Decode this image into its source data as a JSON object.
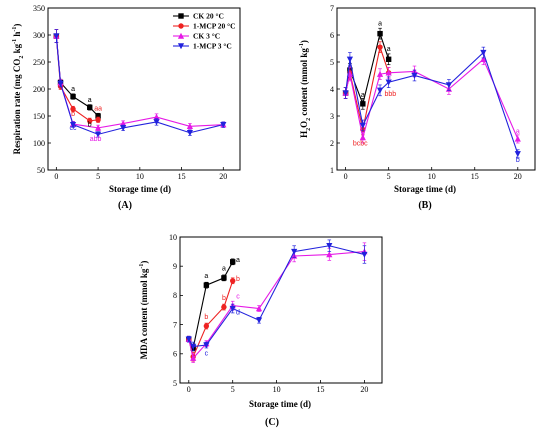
{
  "chart_data": [
    {
      "type": "line",
      "panel_label": "(A)",
      "xlabel": "Storage time (d)",
      "ylabel": "Respiration rate (mg CO2 kg-1 h-1)",
      "xlim": [
        -1,
        22
      ],
      "ylim": [
        50,
        350
      ],
      "xticks": [
        0,
        5,
        10,
        15,
        20
      ],
      "yticks": [
        50,
        100,
        150,
        200,
        250,
        300,
        350
      ],
      "legend_position": "top-right",
      "series": [
        {
          "name": "CK 20 °C",
          "color": "#000000",
          "marker": "square",
          "x": [
            0,
            0.5,
            2,
            4,
            5
          ],
          "y": [
            298,
            212,
            186,
            166,
            150
          ],
          "err": [
            12,
            6,
            5,
            5,
            5
          ]
        },
        {
          "name": "1-MCP 20 °C",
          "color": "#ee2222",
          "marker": "circle",
          "x": [
            0,
            0.5,
            2,
            4,
            5
          ],
          "y": [
            298,
            205,
            163,
            141,
            143
          ],
          "err": [
            12,
            6,
            5,
            5,
            5
          ]
        },
        {
          "name": "CK 3 °C",
          "color": "#e619e6",
          "marker": "triangle-up",
          "x": [
            0,
            0.5,
            2,
            5,
            8,
            12,
            16,
            20
          ],
          "y": [
            298,
            212,
            135,
            128,
            136,
            148,
            131,
            134
          ],
          "err": [
            12,
            6,
            5,
            5,
            5,
            6,
            5,
            5
          ]
        },
        {
          "name": "1-MCP 3 °C",
          "color": "#2222dd",
          "marker": "triangle-down",
          "x": [
            0,
            0.5,
            2,
            5,
            8,
            12,
            16,
            20
          ],
          "y": [
            298,
            210,
            134,
            116,
            128,
            139,
            119,
            134
          ],
          "err": [
            12,
            6,
            5,
            5,
            5,
            6,
            5,
            5
          ]
        }
      ],
      "annotations": [
        {
          "text": "a",
          "x": 2,
          "y": 196,
          "color": "#000000"
        },
        {
          "text": "b",
          "x": 2,
          "y": 150,
          "color": "#ee2222"
        },
        {
          "text": "cc",
          "x": 2,
          "y": 124,
          "color": "#2222dd"
        },
        {
          "text": "a",
          "x": 4,
          "y": 176,
          "color": "#000000"
        },
        {
          "text": "b",
          "x": 4,
          "y": 131,
          "color": "#000000"
        },
        {
          "text": "aa",
          "x": 5,
          "y": 160,
          "color": "#ee2222"
        },
        {
          "text": "abb",
          "x": 4.7,
          "y": 104,
          "color": "#e619e6"
        }
      ]
    },
    {
      "type": "line",
      "panel_label": "(B)",
      "xlabel": "Storage time (d)",
      "ylabel": "H2O2 content (mmol kg-1)",
      "xlim": [
        -1,
        22
      ],
      "ylim": [
        1,
        7
      ],
      "xticks": [
        0,
        5,
        10,
        15,
        20
      ],
      "yticks": [
        1,
        2,
        3,
        4,
        5,
        6,
        7
      ],
      "series": [
        {
          "name": "CK 20 °C",
          "color": "#000000",
          "marker": "square",
          "x": [
            0,
            0.5,
            2,
            4,
            5
          ],
          "y": [
            3.85,
            4.7,
            3.45,
            6.05,
            5.1
          ],
          "err": [
            0.2,
            0.25,
            0.2,
            0.2,
            0.2
          ]
        },
        {
          "name": "1-MCP 20 °C",
          "color": "#ee2222",
          "marker": "circle",
          "x": [
            0,
            0.5,
            2,
            4,
            5
          ],
          "y": [
            3.85,
            4.6,
            2.5,
            5.55,
            4.6
          ],
          "err": [
            0.2,
            0.25,
            0.2,
            0.2,
            0.2
          ]
        },
        {
          "name": "CK 3 °C",
          "color": "#e619e6",
          "marker": "triangle-up",
          "x": [
            0,
            0.5,
            2,
            4,
            5,
            8,
            12,
            16,
            20
          ],
          "y": [
            3.85,
            4.55,
            2.2,
            4.55,
            4.6,
            4.65,
            4.0,
            5.1,
            2.15
          ],
          "err": [
            0.2,
            0.25,
            0.2,
            0.2,
            0.2,
            0.2,
            0.2,
            0.2,
            0.15
          ]
        },
        {
          "name": "1-MCP 3 °C",
          "color": "#2222dd",
          "marker": "triangle-down",
          "x": [
            0,
            0.5,
            2,
            4,
            5,
            8,
            12,
            16,
            20
          ],
          "y": [
            3.85,
            5.1,
            2.65,
            3.95,
            4.25,
            4.5,
            4.15,
            5.35,
            1.6
          ],
          "err": [
            0.2,
            0.25,
            0.2,
            0.2,
            0.2,
            0.2,
            0.2,
            0.2,
            0.15
          ]
        }
      ],
      "annotations": [
        {
          "text": "a",
          "x": 2,
          "y": 3.7,
          "color": "#000000"
        },
        {
          "text": "bcbc",
          "x": 1.7,
          "y": 1.9,
          "color": "#ee2222"
        },
        {
          "text": "a",
          "x": 4,
          "y": 6.35,
          "color": "#000000"
        },
        {
          "text": "a",
          "x": 5,
          "y": 5.4,
          "color": "#000000"
        },
        {
          "text": "bbb",
          "x": 5.2,
          "y": 3.75,
          "color": "#ee2222"
        },
        {
          "text": "a",
          "x": 20,
          "y": 2.35,
          "color": "#e619e6"
        },
        {
          "text": "b",
          "x": 20,
          "y": 1.3,
          "color": "#2222dd"
        }
      ]
    },
    {
      "type": "line",
      "panel_label": "(C)",
      "xlabel": "Storage time (d)",
      "ylabel": "MDA content (mmol kg-1)",
      "xlim": [
        -1,
        22
      ],
      "ylim": [
        5,
        10
      ],
      "xticks": [
        0,
        5,
        10,
        15,
        20
      ],
      "yticks": [
        5,
        6,
        7,
        8,
        9,
        10
      ],
      "series": [
        {
          "name": "CK 20 °C",
          "color": "#000000",
          "marker": "square",
          "x": [
            0,
            0.5,
            2,
            4,
            5
          ],
          "y": [
            6.5,
            6.2,
            8.35,
            8.6,
            9.15
          ],
          "err": [
            0.1,
            0.1,
            0.1,
            0.1,
            0.1
          ]
        },
        {
          "name": "1-MCP 20 °C",
          "color": "#ee2222",
          "marker": "circle",
          "x": [
            0,
            0.5,
            2,
            4,
            5
          ],
          "y": [
            6.5,
            5.9,
            6.95,
            7.6,
            8.5
          ],
          "err": [
            0.1,
            0.15,
            0.1,
            0.1,
            0.1
          ]
        },
        {
          "name": "CK 3 °C",
          "color": "#e619e6",
          "marker": "triangle-up",
          "x": [
            0,
            0.5,
            2,
            5,
            8,
            12,
            16,
            20
          ],
          "y": [
            6.5,
            5.85,
            6.35,
            7.65,
            7.55,
            9.35,
            9.4,
            9.5
          ],
          "err": [
            0.1,
            0.15,
            0.1,
            0.15,
            0.1,
            0.2,
            0.2,
            0.3
          ]
        },
        {
          "name": "1-MCP 3 °C",
          "color": "#2222dd",
          "marker": "triangle-down",
          "x": [
            0,
            0.5,
            2,
            5,
            8,
            12,
            16,
            20
          ],
          "y": [
            6.5,
            6.25,
            6.3,
            7.55,
            7.15,
            9.5,
            9.7,
            9.4
          ],
          "err": [
            0.1,
            0.15,
            0.1,
            0.15,
            0.1,
            0.2,
            0.2,
            0.3
          ]
        }
      ],
      "annotations": [
        {
          "text": "a",
          "x": 2,
          "y": 8.6,
          "color": "#000000"
        },
        {
          "text": "b",
          "x": 2,
          "y": 7.2,
          "color": "#ee2222"
        },
        {
          "text": "c",
          "x": 2,
          "y": 5.95,
          "color": "#2222dd"
        },
        {
          "text": "a",
          "x": 4,
          "y": 8.85,
          "color": "#000000"
        },
        {
          "text": "b",
          "x": 4,
          "y": 7.85,
          "color": "#ee2222"
        },
        {
          "text": "a",
          "x": 5.6,
          "y": 9.15,
          "color": "#000000"
        },
        {
          "text": "b",
          "x": 5.6,
          "y": 8.5,
          "color": "#ee2222"
        },
        {
          "text": "c",
          "x": 5.6,
          "y": 7.9,
          "color": "#e619e6"
        },
        {
          "text": "d",
          "x": 5.6,
          "y": 7.35,
          "color": "#2222dd"
        }
      ]
    }
  ]
}
